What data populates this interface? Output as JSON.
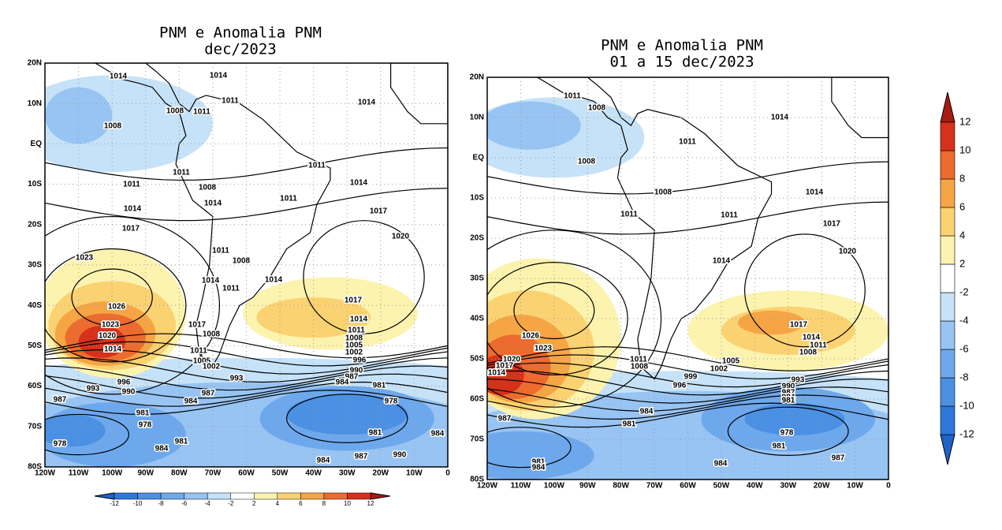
{
  "maps": [
    {
      "title": [
        "PNM e Anomalia PNM",
        "dec/2023"
      ],
      "lat_ticks": [
        "20N",
        "10N",
        "EQ",
        "10S",
        "20S",
        "30S",
        "40S",
        "50S",
        "60S",
        "70S",
        "80S"
      ],
      "lon_ticks": [
        "120W",
        "110W",
        "100W",
        "90W",
        "80W",
        "70W",
        "60W",
        "50W",
        "40W",
        "30W",
        "20W",
        "10W",
        "0"
      ],
      "contour_labels": [
        1014,
        1014,
        1011,
        1014,
        1008,
        1011,
        1008,
        1011,
        1011,
        1011,
        1008,
        1014,
        1011,
        1014,
        1014,
        1017,
        1017,
        1020,
        1023,
        1011,
        1008,
        1014,
        1014,
        1011,
        1026,
        1017,
        1023,
        1017,
        1014,
        1020,
        1008,
        1011,
        1014,
        1011,
        1008,
        1005,
        1002,
        1005,
        1002,
        996,
        990,
        993,
        987,
        984,
        981,
        996,
        990,
        993,
        987,
        987,
        984,
        978,
        981,
        978,
        981,
        978,
        984,
        981,
        984,
        990,
        987,
        984
      ]
    },
    {
      "title": [
        "PNM e Anomalia PNM",
        "01 a 15 dec/2023"
      ],
      "lat_ticks": [
        "20N",
        "10N",
        "EQ",
        "10S",
        "20S",
        "30S",
        "40S",
        "50S",
        "60S",
        "70S",
        "80S"
      ],
      "lon_ticks": [
        "120W",
        "110W",
        "100W",
        "90W",
        "80W",
        "70W",
        "60W",
        "50W",
        "40W",
        "30W",
        "20W",
        "10W",
        "0"
      ],
      "contour_labels": [
        1011,
        1008,
        1014,
        1011,
        1008,
        1008,
        1014,
        1011,
        1011,
        1017,
        1020,
        1014,
        1026,
        1017,
        1023,
        1014,
        1020,
        1011,
        1017,
        1008,
        1014,
        1011,
        1008,
        1005,
        1002,
        999,
        993,
        996,
        990,
        987,
        984,
        981,
        984,
        981,
        987,
        978,
        981,
        984,
        987,
        981,
        984
      ]
    }
  ],
  "colorbar": {
    "levels": [
      -12,
      -10,
      -8,
      -6,
      -4,
      -2,
      2,
      4,
      6,
      8,
      10,
      12
    ],
    "colors": [
      "#1f62c8",
      "#2c78da",
      "#4b90e2",
      "#6ea8ec",
      "#98c4f3",
      "#c6e2f8",
      "#ffffff",
      "#fcf3ae",
      "#fbd272",
      "#f6a544",
      "#ec6b2e",
      "#d6311a",
      "#a81b12"
    ]
  }
}
